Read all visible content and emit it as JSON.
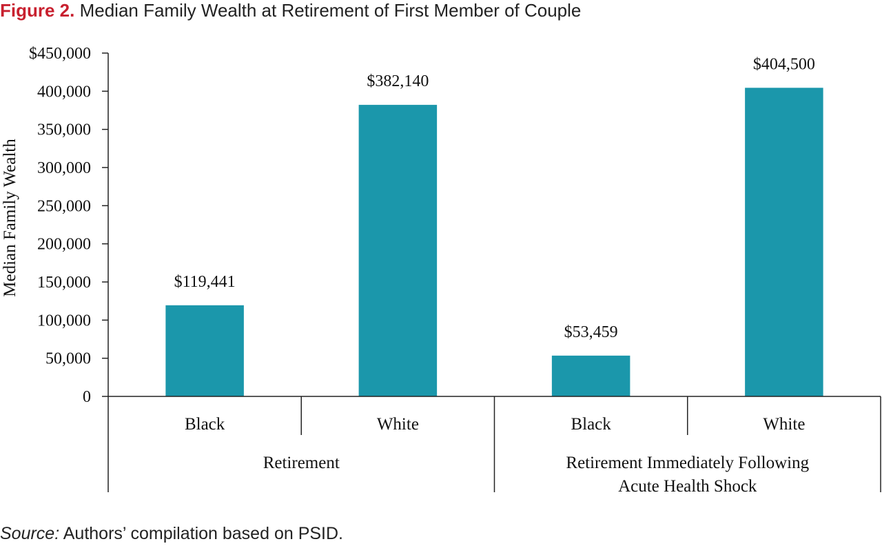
{
  "title": {
    "figure_label": "Figure 2.",
    "text": "Median Family Wealth at Retirement of First Member of Couple"
  },
  "source": {
    "prefix": "Source:",
    "text": "Authors’ compilation based on PSID."
  },
  "colors": {
    "bar": "#1b97ab",
    "figure_label": "#c8202f",
    "axis": "#222222"
  },
  "chart_data": {
    "type": "bar",
    "ylabel": "Median Family Wealth",
    "ylim": [
      0,
      450000
    ],
    "yticks": [
      {
        "value": 0,
        "label": "0"
      },
      {
        "value": 50000,
        "label": "50,000"
      },
      {
        "value": 100000,
        "label": "100,000"
      },
      {
        "value": 150000,
        "label": "150,000"
      },
      {
        "value": 200000,
        "label": "200,000"
      },
      {
        "value": 250000,
        "label": "250,000"
      },
      {
        "value": 300000,
        "label": "300,000"
      },
      {
        "value": 350000,
        "label": "350,000"
      },
      {
        "value": 400000,
        "label": "400,000"
      },
      {
        "value": 450000,
        "label": "$450,000"
      }
    ],
    "groups": [
      {
        "label": [
          "Retirement"
        ],
        "categories": [
          "Black",
          "White"
        ]
      },
      {
        "label": [
          "Retirement Immediately Following",
          "Acute Health Shock"
        ],
        "categories": [
          "Black",
          "White"
        ]
      }
    ],
    "categories": [
      "Black",
      "White",
      "Black",
      "White"
    ],
    "values": [
      119441,
      382140,
      53459,
      404500
    ],
    "data_labels": [
      "$119,441",
      "$382,140",
      "$53,459",
      "$404,500"
    ],
    "grid": false,
    "legend": "none"
  }
}
